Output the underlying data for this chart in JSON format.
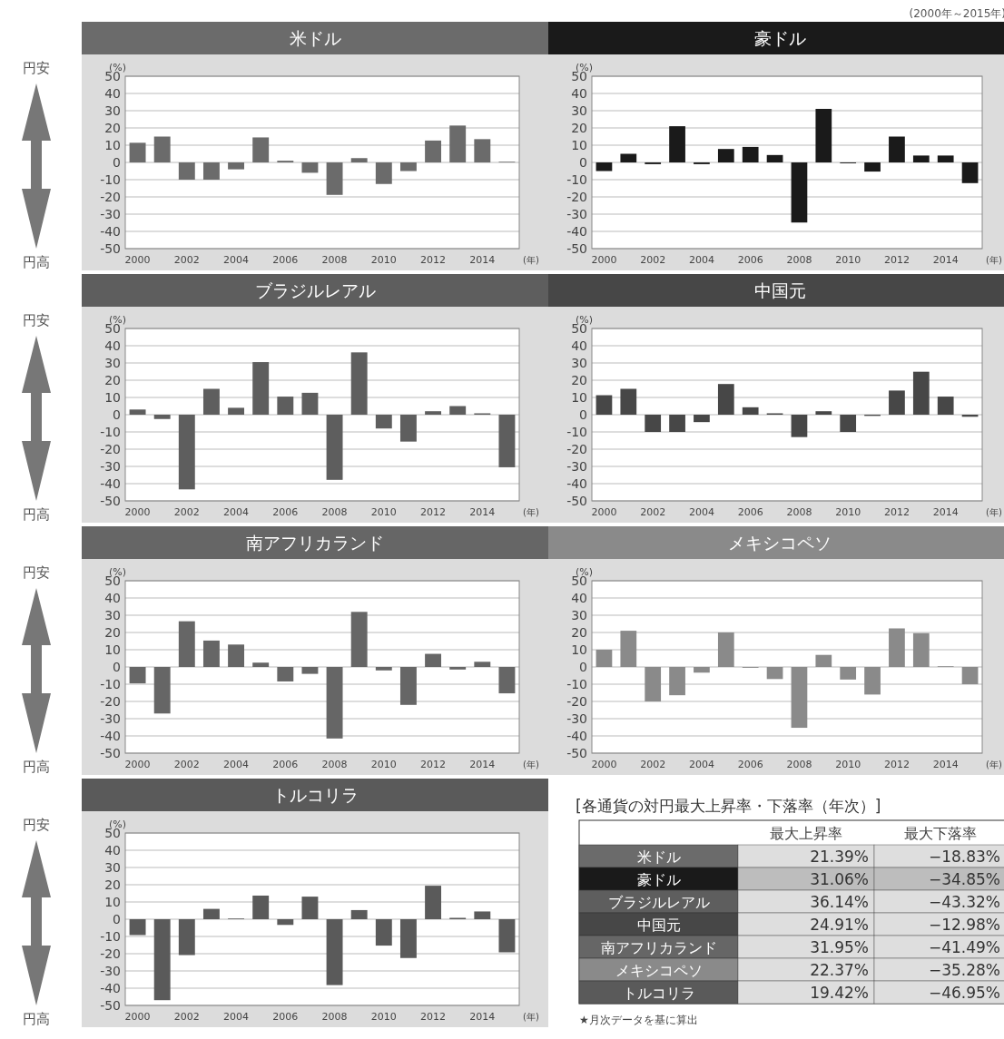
{
  "chart_data": [
    {
      "type": "bar",
      "title": "米ドル",
      "ylabel": "(%)",
      "xlabel": "(年)",
      "annotations": [
        "円安",
        "円高"
      ],
      "x": [
        2000,
        2001,
        2002,
        2003,
        2004,
        2005,
        2006,
        2007,
        2008,
        2009,
        2010,
        2011,
        2012,
        2013,
        2014,
        2015
      ],
      "xlim": [
        1999.5,
        2015.5
      ],
      "xticks": [
        2000,
        2002,
        2004,
        2006,
        2008,
        2010,
        2012,
        2014
      ],
      "ylim": [
        -50,
        50
      ],
      "yticks": [
        50,
        40,
        30,
        20,
        10,
        0,
        -10,
        -20,
        -30,
        -40,
        -50
      ],
      "grid": "y",
      "series": [
        {
          "color": "#6b6b6b",
          "values": [
            11.4,
            15,
            -10,
            -10,
            -4,
            14.5,
            1,
            -6,
            -18.83,
            2.5,
            -12.5,
            -5,
            12.7,
            21.39,
            13.5,
            0.4
          ]
        }
      ]
    },
    {
      "type": "bar",
      "title": "豪ドル",
      "ylabel": "(%)",
      "xlabel": "(年)",
      "x": [
        2000,
        2001,
        2002,
        2003,
        2004,
        2005,
        2006,
        2007,
        2008,
        2009,
        2010,
        2011,
        2012,
        2013,
        2014,
        2015
      ],
      "xlim": [
        1999.5,
        2015.5
      ],
      "xticks": [
        2000,
        2002,
        2004,
        2006,
        2008,
        2010,
        2012,
        2014
      ],
      "ylim": [
        -50,
        50
      ],
      "yticks": [
        50,
        40,
        30,
        20,
        10,
        0,
        -10,
        -20,
        -30,
        -40,
        -50
      ],
      "grid": "y",
      "series": [
        {
          "color": "#1a1a1a",
          "values": [
            -5,
            5,
            -1,
            21,
            -1,
            7.8,
            9,
            4.3,
            -34.85,
            31.06,
            -0.5,
            -5.3,
            15,
            4,
            4,
            -12
          ]
        }
      ]
    },
    {
      "type": "bar",
      "title": "ブラジルレアル",
      "ylabel": "(%)",
      "xlabel": "(年)",
      "annotations": [
        "円安",
        "円高"
      ],
      "x": [
        2000,
        2001,
        2002,
        2003,
        2004,
        2005,
        2006,
        2007,
        2008,
        2009,
        2010,
        2011,
        2012,
        2013,
        2014,
        2015
      ],
      "xlim": [
        1999.5,
        2015.5
      ],
      "xticks": [
        2000,
        2002,
        2004,
        2006,
        2008,
        2010,
        2012,
        2014
      ],
      "ylim": [
        -50,
        50
      ],
      "yticks": [
        50,
        40,
        30,
        20,
        10,
        0,
        -10,
        -20,
        -30,
        -40,
        -50
      ],
      "grid": "y",
      "series": [
        {
          "color": "#5e5e5e",
          "values": [
            3,
            -2.5,
            -43.32,
            15,
            4,
            30.5,
            10.5,
            12.7,
            -37.8,
            36.14,
            -8,
            -15.6,
            2,
            5,
            0.8,
            -30.5
          ]
        }
      ]
    },
    {
      "type": "bar",
      "title": "中国元",
      "ylabel": "(%)",
      "xlabel": "(年)",
      "x": [
        2000,
        2001,
        2002,
        2003,
        2004,
        2005,
        2006,
        2007,
        2008,
        2009,
        2010,
        2011,
        2012,
        2013,
        2014,
        2015
      ],
      "xlim": [
        1999.5,
        2015.5
      ],
      "xticks": [
        2000,
        2002,
        2004,
        2006,
        2008,
        2010,
        2012,
        2014
      ],
      "ylim": [
        -50,
        50
      ],
      "yticks": [
        50,
        40,
        30,
        20,
        10,
        0,
        -10,
        -20,
        -30,
        -40,
        -50
      ],
      "grid": "y",
      "series": [
        {
          "color": "#474747",
          "values": [
            11.3,
            15,
            -10,
            -10,
            -4.3,
            17.8,
            4.3,
            0.8,
            -12.98,
            2,
            -10,
            -0.7,
            14,
            24.91,
            10.5,
            -1.2
          ]
        }
      ]
    },
    {
      "type": "bar",
      "title": "南アフリカランド",
      "ylabel": "(%)",
      "xlabel": "(年)",
      "annotations": [
        "円安",
        "円高"
      ],
      "x": [
        2000,
        2001,
        2002,
        2003,
        2004,
        2005,
        2006,
        2007,
        2008,
        2009,
        2010,
        2011,
        2012,
        2013,
        2014,
        2015
      ],
      "xlim": [
        1999.5,
        2015.5
      ],
      "xticks": [
        2000,
        2002,
        2004,
        2006,
        2008,
        2010,
        2012,
        2014
      ],
      "ylim": [
        -50,
        50
      ],
      "yticks": [
        50,
        40,
        30,
        20,
        10,
        0,
        -10,
        -20,
        -30,
        -40,
        -50
      ],
      "grid": "y",
      "series": [
        {
          "color": "#666666",
          "values": [
            -9.5,
            -27,
            26.5,
            15.3,
            13,
            2.5,
            -8.4,
            -4,
            -41.49,
            31.95,
            -2,
            -22,
            7.6,
            -1.5,
            3,
            -15.3
          ]
        }
      ]
    },
    {
      "type": "bar",
      "title": "メキシコペソ",
      "ylabel": "(%)",
      "xlabel": "(年)",
      "x": [
        2000,
        2001,
        2002,
        2003,
        2004,
        2005,
        2006,
        2007,
        2008,
        2009,
        2010,
        2011,
        2012,
        2013,
        2014,
        2015
      ],
      "xlim": [
        1999.5,
        2015.5
      ],
      "xticks": [
        2000,
        2002,
        2004,
        2006,
        2008,
        2010,
        2012,
        2014
      ],
      "ylim": [
        -50,
        50
      ],
      "yticks": [
        50,
        40,
        30,
        20,
        10,
        0,
        -10,
        -20,
        -30,
        -40,
        -50
      ],
      "grid": "y",
      "series": [
        {
          "color": "#8a8a8a",
          "values": [
            10,
            21,
            -20,
            -16.4,
            -3.3,
            20,
            -0.5,
            -7,
            -35.28,
            7,
            -7.3,
            -16,
            22.37,
            19.6,
            0.4,
            -10
          ]
        }
      ]
    },
    {
      "type": "bar",
      "title": "トルコリラ",
      "ylabel": "(%)",
      "xlabel": "(年)",
      "annotations": [
        "円安",
        "円高"
      ],
      "x": [
        2000,
        2001,
        2002,
        2003,
        2004,
        2005,
        2006,
        2007,
        2008,
        2009,
        2010,
        2011,
        2012,
        2013,
        2014,
        2015
      ],
      "xlim": [
        1999.5,
        2015.5
      ],
      "xticks": [
        2000,
        2002,
        2004,
        2006,
        2008,
        2010,
        2012,
        2014
      ],
      "ylim": [
        -50,
        50
      ],
      "yticks": [
        50,
        40,
        30,
        20,
        10,
        0,
        -10,
        -20,
        -30,
        -40,
        -50
      ],
      "grid": "y",
      "series": [
        {
          "color": "#5a5a5a",
          "values": [
            -9.2,
            -46.95,
            -20.8,
            6,
            0.4,
            13.7,
            -3.3,
            13.1,
            -38.2,
            5.3,
            -15.3,
            -22.5,
            19.42,
            0.8,
            4.5,
            -19.2
          ]
        }
      ]
    },
    {
      "type": "other",
      "title": "[各通貨の対円最大上昇率・下落率（年次）]",
      "annotations": [
        "(2000年～2015年)",
        "★月次データを基に算出"
      ],
      "categories": [
        "米ドル",
        "豪ドル",
        "ブラジルレアル",
        "中国元",
        "南アフリカランド",
        "メキシコペソ",
        "トルコリラ"
      ],
      "colors": [
        "#6b6b6b",
        "#1a1a1a",
        "#5e5e5e",
        "#474747",
        "#666666",
        "#8a8a8a",
        "#5a5a5a"
      ],
      "series": [
        {
          "name": "最大上昇率",
          "values": [
            21.39,
            31.06,
            36.14,
            24.91,
            31.95,
            22.37,
            19.42
          ],
          "colors": [
            "#dedede",
            "#bdbdbd",
            "#dedede",
            "#dedede",
            "#dedede",
            "#dedede",
            "#dedede"
          ],
          "value_labels": [
            "21.39%",
            "31.06%",
            "36.14%",
            "24.91%",
            "31.95%",
            "22.37%",
            "19.42%"
          ]
        },
        {
          "name": "最大下落率",
          "values": [
            -18.83,
            -34.85,
            -43.32,
            -12.98,
            -41.49,
            -35.28,
            -46.95
          ],
          "colors": [
            "#dedede",
            "#bdbdbd",
            "#dedede",
            "#dedede",
            "#dedede",
            "#dedede",
            "#dedede"
          ],
          "value_labels": [
            "−18.83%",
            "−34.85%",
            "−43.32%",
            "−12.98%",
            "−41.49%",
            "−35.28%",
            "−46.95%"
          ]
        }
      ]
    }
  ]
}
